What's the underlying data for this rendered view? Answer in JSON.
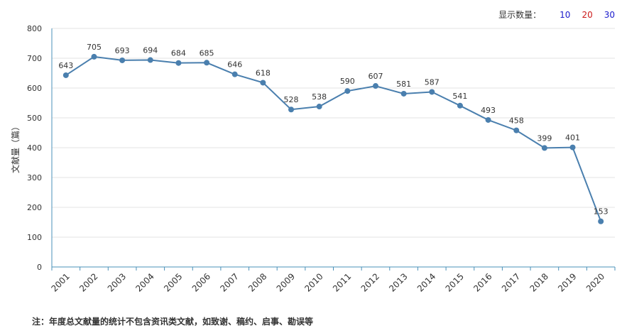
{
  "display_count": {
    "label": "显示数量：",
    "options": [
      {
        "label": "10",
        "color": "#1a1acc"
      },
      {
        "label": "20",
        "color": "#cc1a1a"
      },
      {
        "label": "30",
        "color": "#1a1acc"
      }
    ]
  },
  "chart_data": {
    "type": "line",
    "ylabel": "文献量（篇）",
    "ylim": [
      0,
      800
    ],
    "yticks": [
      0,
      100,
      200,
      300,
      400,
      500,
      600,
      700,
      800
    ],
    "grid": true,
    "line_color": "#4a7fae",
    "categories": [
      "2001",
      "2002",
      "2003",
      "2004",
      "2005",
      "2006",
      "2007",
      "2008",
      "2009",
      "2010",
      "2011",
      "2012",
      "2013",
      "2014",
      "2015",
      "2016",
      "2017",
      "2018",
      "2019",
      "2020"
    ],
    "values": [
      643,
      705,
      693,
      694,
      684,
      685,
      646,
      618,
      528,
      538,
      590,
      607,
      581,
      587,
      541,
      493,
      458,
      399,
      401,
      153
    ]
  },
  "footnote": "注：年度总文献量的统计不包含资讯类文献，如致谢、稿约、启事、勘误等"
}
